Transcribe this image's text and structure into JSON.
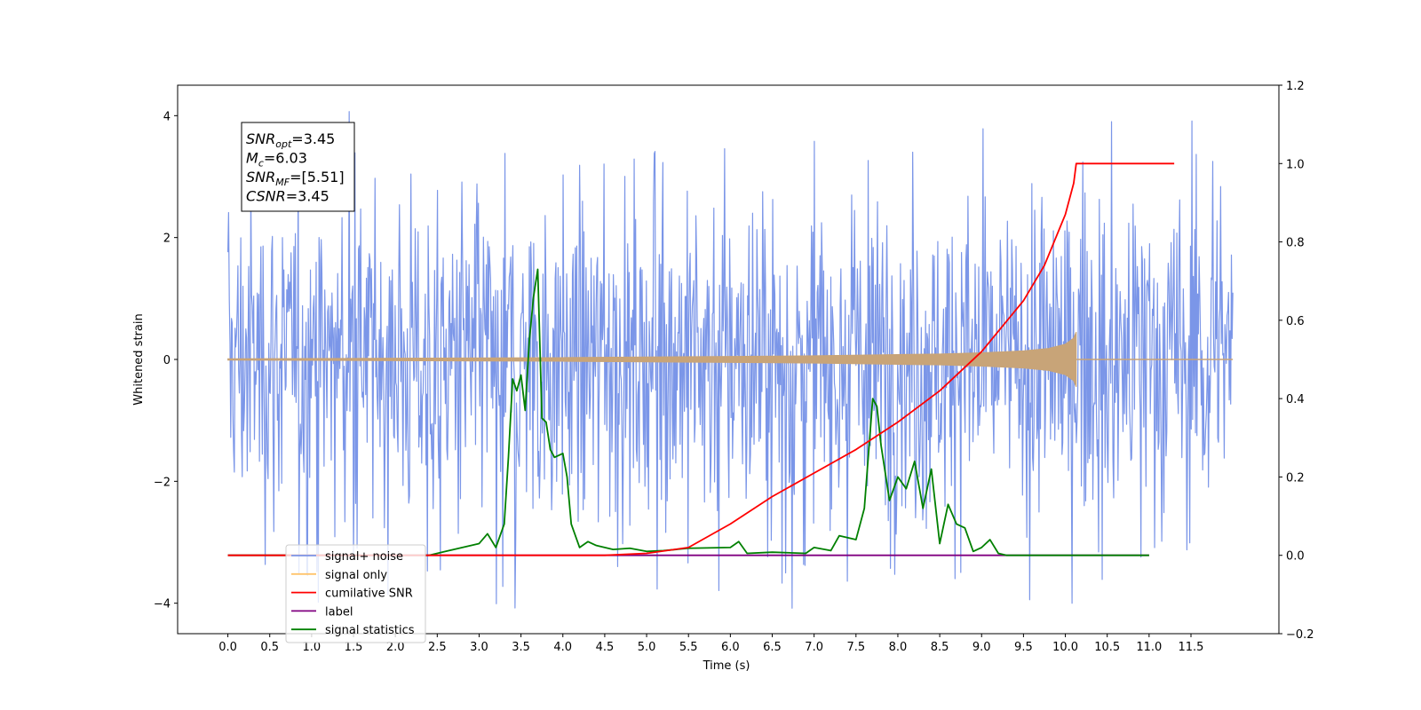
{
  "chart_data": {
    "type": "line",
    "xlabel": "Time (s)",
    "ylabel": "Whitened strain",
    "xlim": [
      -0.6,
      12.55
    ],
    "ylim": [
      -4.5,
      4.5
    ],
    "y2lim": [
      -0.2,
      1.2
    ],
    "x_ticks": [
      "0.0",
      "0.5",
      "1.0",
      "1.5",
      "2.0",
      "2.5",
      "3.0",
      "3.5",
      "4.0",
      "4.5",
      "5.0",
      "5.5",
      "6.0",
      "6.5",
      "7.0",
      "7.5",
      "8.0",
      "8.5",
      "9.0",
      "9.5",
      "10.0",
      "10.5",
      "11.0",
      "11.5"
    ],
    "y_ticks": [
      "4",
      "2",
      "0",
      "−2",
      "−4"
    ],
    "y2_ticks": [
      "1.2",
      "1.0",
      "0.8",
      "0.6",
      "0.4",
      "0.2",
      "0.0",
      "−0.2"
    ],
    "annotation": {
      "lines": [
        {
          "base": "SNR",
          "sub": "opt",
          "value": "=3.45"
        },
        {
          "base": "M",
          "sub": "c",
          "value": "=6.03"
        },
        {
          "base": "SNR",
          "sub": "MF",
          "value": "=[5.51]"
        },
        {
          "base": "CSNR",
          "sub": "",
          "value": "=3.45"
        }
      ]
    },
    "legend": {
      "placement": "lower-left",
      "entries": [
        {
          "label": "signal+ noise",
          "color": "#7b96e8"
        },
        {
          "label": "signal only",
          "color": "#ffc46b"
        },
        {
          "label": "cumilative SNR",
          "color": "#ff0000"
        },
        {
          "label": "label",
          "color": "#800080"
        },
        {
          "label": "signal statistics",
          "color": "#008000"
        }
      ]
    },
    "series": [
      {
        "name": "signal+ noise",
        "axis": "left",
        "color": "#7b96e8",
        "x_range": [
          0.0,
          12.0
        ],
        "typical_amplitude": 2.2,
        "peak_max": 4.1,
        "peak_min": -4.1
      },
      {
        "name": "signal only",
        "axis": "left",
        "color": "#c8a478",
        "envelope_x": [
          0.0,
          2.0,
          4.0,
          5.0,
          6.0,
          7.0,
          8.0,
          8.5,
          9.0,
          9.5,
          9.8,
          10.0,
          10.1,
          10.13
        ],
        "envelope_y": [
          0.01,
          0.02,
          0.03,
          0.04,
          0.05,
          0.06,
          0.08,
          0.09,
          0.11,
          0.14,
          0.18,
          0.25,
          0.35,
          0.45
        ],
        "end_x": 10.13
      },
      {
        "name": "cumilative SNR",
        "axis": "right",
        "color": "#ff0000",
        "x": [
          0.0,
          4.5,
          5.0,
          5.5,
          6.0,
          6.5,
          7.0,
          7.5,
          8.0,
          8.5,
          9.0,
          9.5,
          9.75,
          10.0,
          10.1,
          10.13,
          10.13,
          11.3
        ],
        "y": [
          0.0,
          0.0,
          0.005,
          0.02,
          0.08,
          0.15,
          0.21,
          0.27,
          0.34,
          0.42,
          0.52,
          0.65,
          0.74,
          0.87,
          0.95,
          1.0,
          1.0,
          1.0
        ]
      },
      {
        "name": "label",
        "axis": "right",
        "color": "#800080",
        "x": [
          0.0,
          11.0
        ],
        "y": [
          0.0,
          0.0
        ]
      },
      {
        "name": "signal statistics",
        "axis": "right",
        "color": "#008000",
        "x": [
          0.0,
          2.4,
          2.6,
          2.8,
          3.0,
          3.1,
          3.2,
          3.3,
          3.35,
          3.4,
          3.45,
          3.5,
          3.55,
          3.6,
          3.65,
          3.7,
          3.75,
          3.8,
          3.85,
          3.9,
          4.0,
          4.05,
          4.1,
          4.2,
          4.3,
          4.4,
          4.5,
          4.6,
          4.8,
          5.0,
          5.2,
          5.5,
          6.0,
          6.1,
          6.2,
          6.5,
          6.9,
          7.0,
          7.2,
          7.3,
          7.5,
          7.6,
          7.7,
          7.75,
          7.8,
          7.9,
          8.0,
          8.1,
          8.2,
          8.3,
          8.4,
          8.5,
          8.6,
          8.7,
          8.8,
          8.9,
          9.0,
          9.1,
          9.2,
          9.3,
          9.5,
          10.0,
          11.0
        ],
        "y": [
          0.0,
          0.0,
          0.01,
          0.02,
          0.03,
          0.055,
          0.02,
          0.08,
          0.25,
          0.45,
          0.42,
          0.46,
          0.37,
          0.55,
          0.66,
          0.73,
          0.35,
          0.34,
          0.27,
          0.25,
          0.26,
          0.2,
          0.08,
          0.02,
          0.035,
          0.025,
          0.02,
          0.015,
          0.018,
          0.01,
          0.012,
          0.018,
          0.02,
          0.035,
          0.005,
          0.008,
          0.005,
          0.02,
          0.012,
          0.05,
          0.04,
          0.12,
          0.4,
          0.38,
          0.28,
          0.14,
          0.2,
          0.17,
          0.24,
          0.12,
          0.22,
          0.03,
          0.13,
          0.08,
          0.07,
          0.01,
          0.02,
          0.04,
          0.005,
          0.0,
          0.0,
          0.0,
          0.0
        ]
      }
    ]
  }
}
